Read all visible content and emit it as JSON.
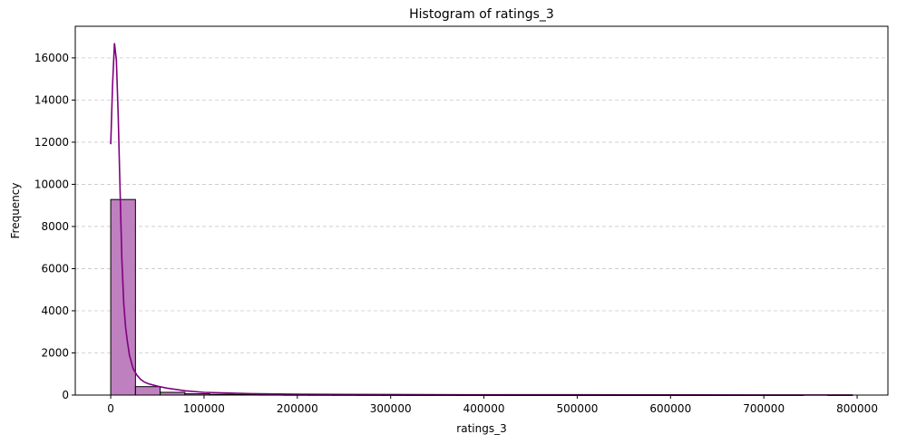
{
  "chart_data": {
    "type": "bar",
    "title": "Histogram of ratings_3",
    "xlabel": "ratings_3",
    "ylabel": "Frequency",
    "xlim": [
      -38000,
      833000
    ],
    "ylim": [
      0,
      17500
    ],
    "xticks": [
      0,
      100000,
      200000,
      300000,
      400000,
      500000,
      600000,
      700000,
      800000
    ],
    "yticks": [
      0,
      2000,
      4000,
      6000,
      8000,
      10000,
      12000,
      14000,
      16000
    ],
    "grid": "y-dashed",
    "bin_edges": [
      0,
      26500,
      53000,
      79500,
      106000,
      132500,
      159000,
      185500,
      212000,
      238500,
      265000,
      291500,
      318000,
      344500,
      371000,
      397500,
      424000,
      450500,
      477000,
      503500,
      530000,
      556500,
      583000,
      609500,
      636000,
      662500,
      689000,
      715500,
      742000,
      768500,
      795000
    ],
    "counts": [
      9280,
      400,
      130,
      60,
      35,
      25,
      18,
      12,
      10,
      8,
      6,
      5,
      4,
      4,
      3,
      3,
      2,
      2,
      2,
      2,
      1,
      1,
      1,
      1,
      1,
      1,
      1,
      1,
      0,
      1
    ],
    "kde": {
      "x": [
        0,
        2000,
        4000,
        6000,
        8000,
        10000,
        12000,
        14000,
        16000,
        18000,
        20000,
        24000,
        28000,
        32000,
        36000,
        40000,
        50000,
        60000,
        80000,
        100000,
        150000,
        200000,
        300000,
        400000,
        500000,
        600000,
        700000,
        795000
      ],
      "y": [
        11900,
        14700,
        16700,
        15900,
        13300,
        9700,
        6400,
        4300,
        3200,
        2500,
        1900,
        1250,
        950,
        750,
        620,
        540,
        420,
        330,
        200,
        130,
        70,
        40,
        25,
        15,
        12,
        8,
        5,
        4
      ]
    },
    "colors": {
      "bar_fill": "#bf80bf",
      "bar_edge": "#000000",
      "kde_line": "#800080",
      "grid": "#c8c8c8"
    }
  }
}
